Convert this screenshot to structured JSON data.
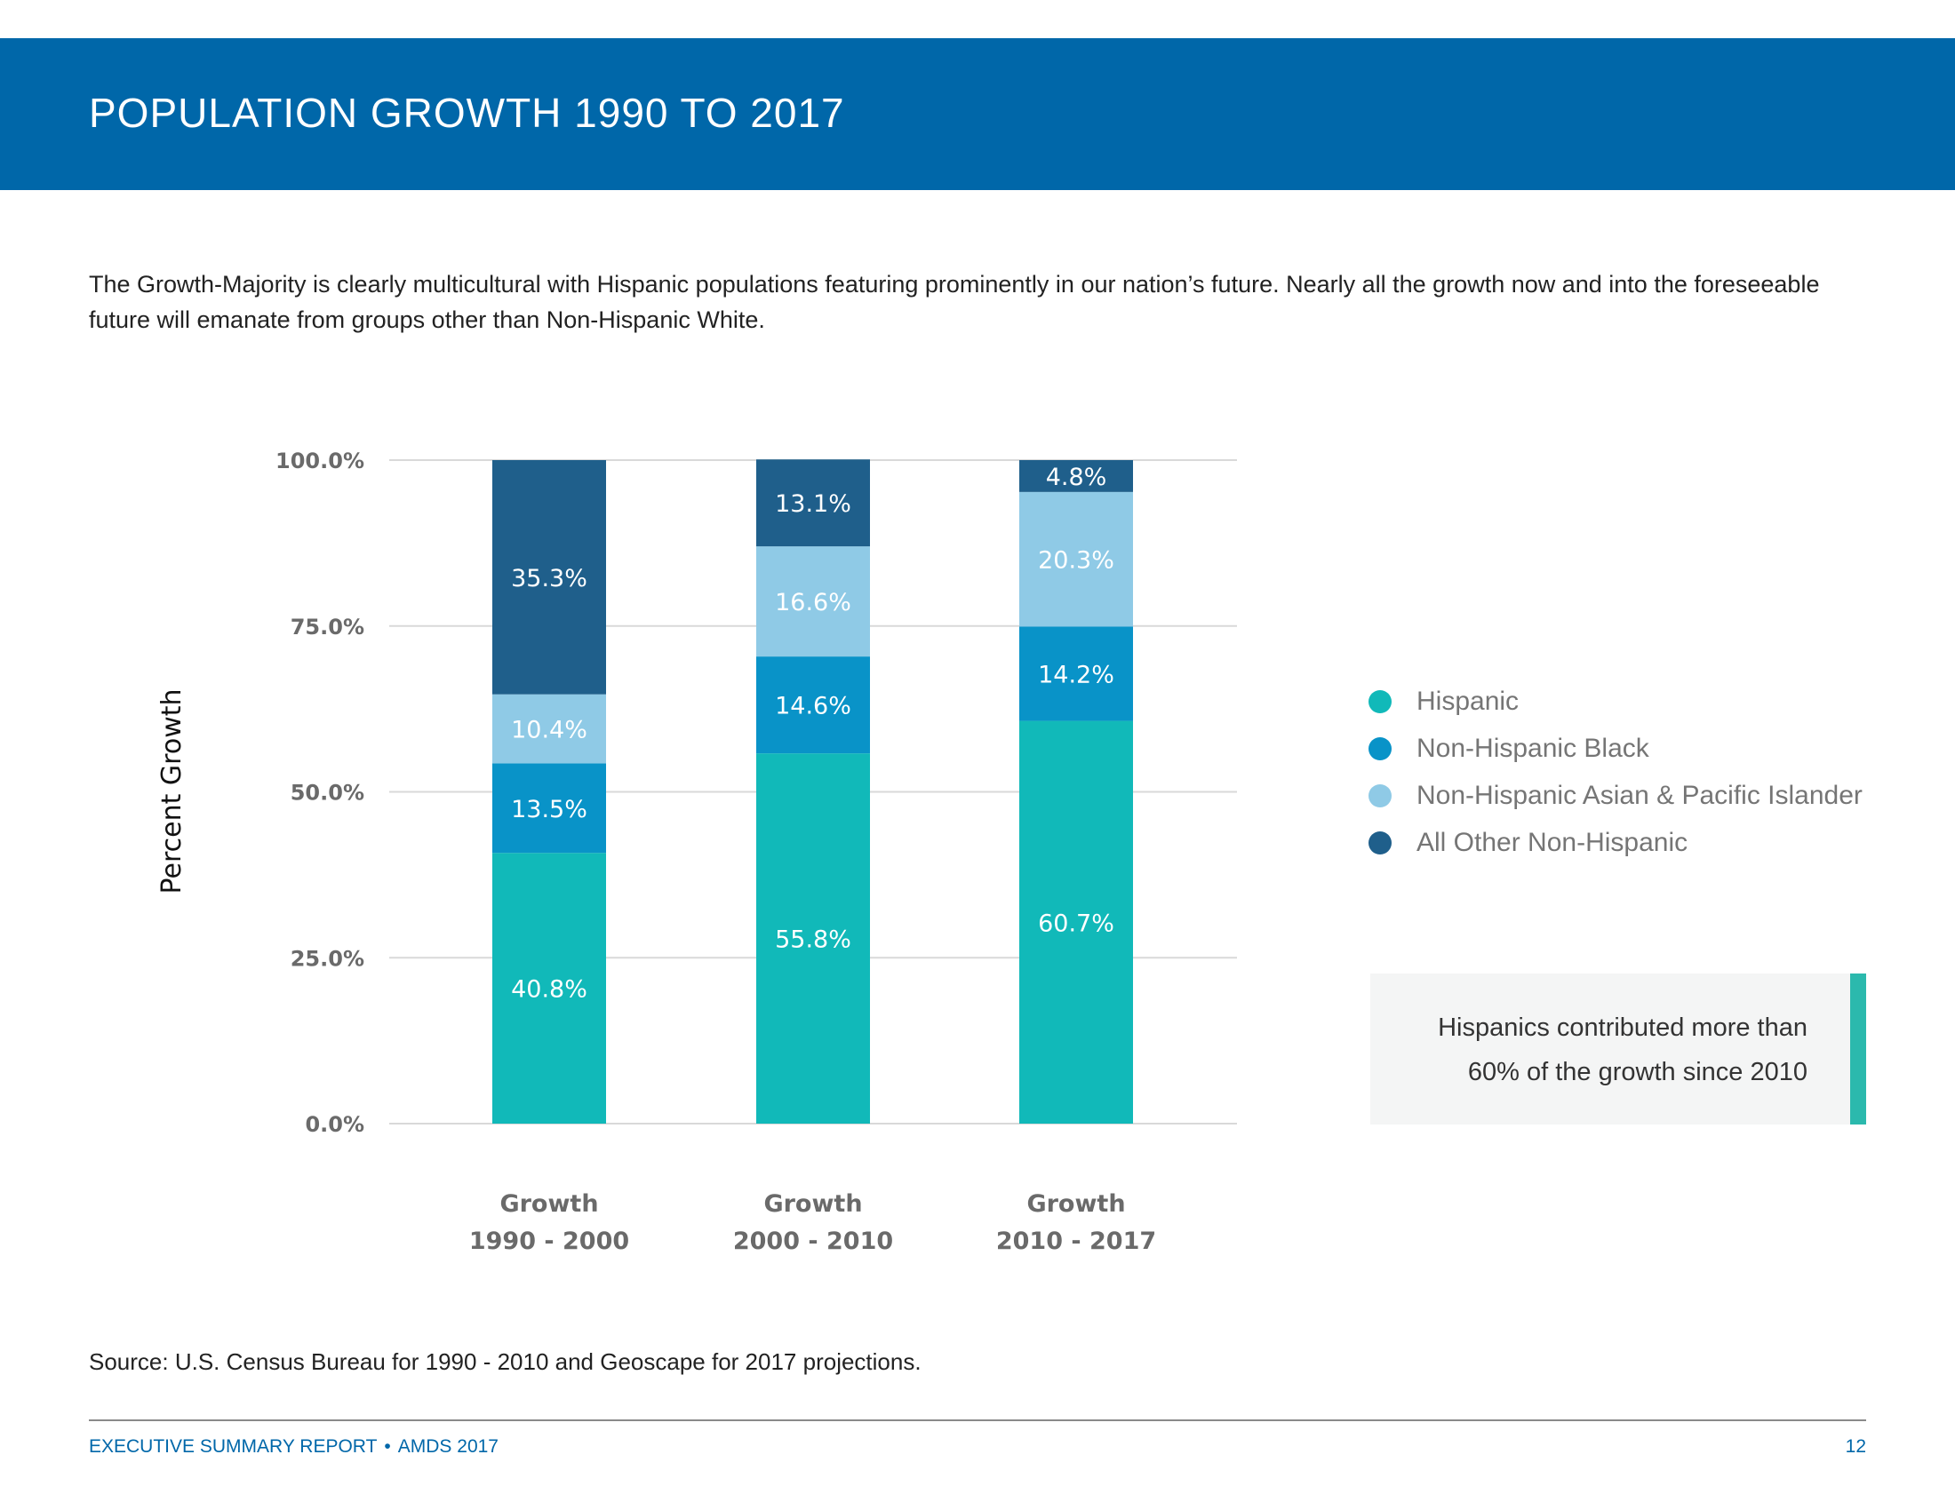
{
  "header": {
    "title": "POPULATION GROWTH 1990 TO 2017"
  },
  "intro": {
    "text": "The Growth-Majority is clearly multicultural with Hispanic populations featuring prominently in our nation’s future. Nearly all the growth now and into the foreseeable future will emanate from groups other than Non-Hispanic White."
  },
  "chart_data": {
    "type": "bar",
    "stacked": true,
    "categories": [
      [
        "Growth",
        "1990 - 2000"
      ],
      [
        "Growth",
        "2000 - 2010"
      ],
      [
        "Growth",
        "2010 - 2017"
      ]
    ],
    "series": [
      {
        "name": "Hispanic",
        "color": "#11b9b9",
        "values": [
          40.8,
          55.8,
          60.7
        ],
        "labels": [
          "40.8%",
          "55.8%",
          "60.7%"
        ]
      },
      {
        "name": "Non-Hispanic Black",
        "color": "#0993c8",
        "values": [
          13.5,
          14.6,
          14.2
        ],
        "labels": [
          "13.5%",
          "14.6%",
          "14.2%"
        ]
      },
      {
        "name": "Non-Hispanic Asian & Pacific Islander",
        "color": "#8fcae6",
        "values": [
          10.4,
          16.6,
          20.3
        ],
        "labels": [
          "10.4%",
          "16.6%",
          "20.3%"
        ]
      },
      {
        "name": "All Other Non-Hispanic",
        "color": "#1f5f8b",
        "values": [
          35.3,
          13.1,
          4.8
        ],
        "labels": [
          "35.3%",
          "13.1%",
          "4.8%"
        ]
      }
    ],
    "ylabel": "Percent Growth",
    "xlabel": "",
    "ylim": [
      0,
      100
    ],
    "yticks": [
      0,
      25,
      50,
      75,
      100
    ],
    "ytick_labels": [
      "0.0%",
      "25.0%",
      "50.0%",
      "75.0%",
      "100.0%"
    ],
    "grid": true,
    "legend_position": "right"
  },
  "callout": {
    "line1": "Hispanics contributed more than",
    "line2": "60% of the growth since 2010",
    "accent_color": "#2bb9ad"
  },
  "source": {
    "text": "Source: U.S. Census Bureau for 1990 - 2010 and Geoscape for 2017 projections."
  },
  "footer": {
    "report_name": "EXECUTIVE SUMMARY REPORT",
    "bullet": "•",
    "edition": "AMDS 2017",
    "page_number": "12"
  },
  "colors": {
    "brand_blue": "#0067a9",
    "gridline": "#d9d9d9"
  }
}
